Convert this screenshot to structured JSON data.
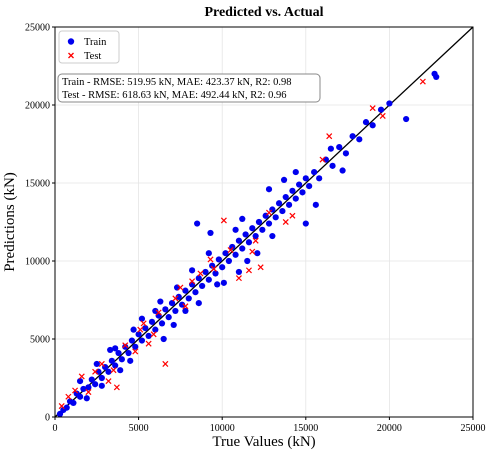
{
  "chart_data": {
    "type": "scatter",
    "title": "Predicted vs. Actual",
    "xlabel": "True Values (kN)",
    "ylabel": "Predictions (kN)",
    "xlim": [
      0,
      25000
    ],
    "ylim": [
      0,
      25000
    ],
    "xticks": [
      0,
      5000,
      10000,
      15000,
      20000,
      25000
    ],
    "yticks": [
      0,
      5000,
      10000,
      15000,
      20000,
      25000
    ],
    "grid": true,
    "legend_position": "top-left",
    "reference_line": {
      "from": [
        0,
        0
      ],
      "to": [
        25000,
        25000
      ],
      "color": "#000000"
    },
    "metrics": [
      "Train - RMSE: 519.95 kN, MAE: 423.37 kN, R2: 0.98",
      "Test - RMSE: 618.63 kN, MAE: 492.44 kN, R2: 0.96"
    ],
    "series": [
      {
        "name": "Train",
        "marker": "circle",
        "color": "#0000ee",
        "points": [
          [
            300,
            200
          ],
          [
            500,
            450
          ],
          [
            700,
            600
          ],
          [
            900,
            1000
          ],
          [
            1100,
            900
          ],
          [
            1300,
            1500
          ],
          [
            1500,
            1300
          ],
          [
            1700,
            1800
          ],
          [
            2000,
            1900
          ],
          [
            2200,
            2400
          ],
          [
            2400,
            2100
          ],
          [
            2600,
            2900
          ],
          [
            2800,
            2500
          ],
          [
            3000,
            3200
          ],
          [
            3200,
            2900
          ],
          [
            3400,
            3600
          ],
          [
            3600,
            3300
          ],
          [
            3800,
            4100
          ],
          [
            4000,
            3700
          ],
          [
            4200,
            4500
          ],
          [
            4400,
            4100
          ],
          [
            4600,
            4900
          ],
          [
            4800,
            4500
          ],
          [
            5000,
            5300
          ],
          [
            5200,
            4900
          ],
          [
            5400,
            5700
          ],
          [
            5600,
            5200
          ],
          [
            5800,
            6100
          ],
          [
            6000,
            5600
          ],
          [
            6200,
            6500
          ],
          [
            6400,
            6000
          ],
          [
            6600,
            6900
          ],
          [
            6800,
            6400
          ],
          [
            7000,
            7300
          ],
          [
            7200,
            6800
          ],
          [
            7400,
            7700
          ],
          [
            7600,
            7200
          ],
          [
            7800,
            8100
          ],
          [
            8000,
            7600
          ],
          [
            8200,
            8500
          ],
          [
            8400,
            8000
          ],
          [
            8600,
            8900
          ],
          [
            8800,
            8400
          ],
          [
            9000,
            9300
          ],
          [
            9200,
            8800
          ],
          [
            9400,
            9700
          ],
          [
            9600,
            9200
          ],
          [
            9800,
            10100
          ],
          [
            10000,
            9600
          ],
          [
            10200,
            10500
          ],
          [
            10400,
            10000
          ],
          [
            10600,
            10900
          ],
          [
            10800,
            10400
          ],
          [
            11000,
            11300
          ],
          [
            11200,
            10800
          ],
          [
            11400,
            11700
          ],
          [
            11600,
            11200
          ],
          [
            11800,
            12100
          ],
          [
            12000,
            11600
          ],
          [
            12200,
            12500
          ],
          [
            12400,
            12000
          ],
          [
            12600,
            12900
          ],
          [
            12800,
            12400
          ],
          [
            13000,
            13300
          ],
          [
            13200,
            12800
          ],
          [
            13400,
            13700
          ],
          [
            13600,
            13200
          ],
          [
            13800,
            14100
          ],
          [
            14000,
            13600
          ],
          [
            14200,
            14500
          ],
          [
            14400,
            14000
          ],
          [
            14600,
            14900
          ],
          [
            14800,
            14400
          ],
          [
            15000,
            15300
          ],
          [
            15200,
            14800
          ],
          [
            15500,
            15700
          ],
          [
            15800,
            15300
          ],
          [
            16200,
            16500
          ],
          [
            16600,
            16100
          ],
          [
            17000,
            17300
          ],
          [
            17400,
            16900
          ],
          [
            17800,
            18000
          ],
          [
            18200,
            17800
          ],
          [
            18600,
            18900
          ],
          [
            19000,
            18700
          ],
          [
            19500,
            19700
          ],
          [
            20000,
            20100
          ],
          [
            21000,
            19100
          ],
          [
            22700,
            22000
          ],
          [
            22800,
            21800
          ],
          [
            5200,
            6300
          ],
          [
            6500,
            5000
          ],
          [
            7300,
            8300
          ],
          [
            8600,
            7300
          ],
          [
            9200,
            10500
          ],
          [
            10100,
            8600
          ],
          [
            11200,
            12700
          ],
          [
            12100,
            10500
          ],
          [
            8500,
            12400
          ],
          [
            9300,
            11800
          ],
          [
            11000,
            9300
          ],
          [
            3900,
            3000
          ],
          [
            4700,
            5600
          ],
          [
            2500,
            3400
          ],
          [
            1900,
            1200
          ],
          [
            3300,
            4300
          ],
          [
            13000,
            11600
          ],
          [
            13700,
            15200
          ],
          [
            15600,
            13600
          ],
          [
            16500,
            17200
          ],
          [
            17200,
            15800
          ],
          [
            14400,
            15700
          ],
          [
            12800,
            14600
          ],
          [
            10800,
            12000
          ],
          [
            9700,
            8500
          ],
          [
            7800,
            6800
          ],
          [
            6300,
            7400
          ],
          [
            4500,
            3600
          ],
          [
            3600,
            4400
          ],
          [
            2800,
            2000
          ],
          [
            1500,
            2300
          ],
          [
            15000,
            12400
          ],
          [
            11500,
            10000
          ],
          [
            8200,
            9400
          ],
          [
            6000,
            6800
          ],
          [
            7100,
            5900
          ]
        ]
      },
      {
        "name": "Test",
        "marker": "x",
        "color": "#ff0000",
        "points": [
          [
            400,
            700
          ],
          [
            800,
            1300
          ],
          [
            1200,
            1700
          ],
          [
            1600,
            2600
          ],
          [
            2000,
            1600
          ],
          [
            2400,
            2900
          ],
          [
            2800,
            3400
          ],
          [
            3200,
            2300
          ],
          [
            3500,
            3000
          ],
          [
            3700,
            1900
          ],
          [
            4200,
            4600
          ],
          [
            4800,
            4200
          ],
          [
            5100,
            5600
          ],
          [
            5600,
            4700
          ],
          [
            5900,
            5300
          ],
          [
            6200,
            6700
          ],
          [
            6600,
            3400
          ],
          [
            7200,
            7600
          ],
          [
            7800,
            7100
          ],
          [
            8200,
            8700
          ],
          [
            8700,
            9200
          ],
          [
            9300,
            10100
          ],
          [
            10100,
            12600
          ],
          [
            11000,
            8900
          ],
          [
            11600,
            9400
          ],
          [
            11800,
            10600
          ],
          [
            12300,
            9600
          ],
          [
            12800,
            13100
          ],
          [
            13800,
            12500
          ],
          [
            14200,
            12900
          ],
          [
            16400,
            18000
          ],
          [
            16000,
            16500
          ],
          [
            19000,
            19800
          ],
          [
            19600,
            19300
          ],
          [
            22000,
            21500
          ],
          [
            12000,
            11300
          ],
          [
            10500,
            10700
          ],
          [
            9500,
            9500
          ],
          [
            7500,
            8300
          ],
          [
            5300,
            6000
          ]
        ]
      }
    ]
  }
}
